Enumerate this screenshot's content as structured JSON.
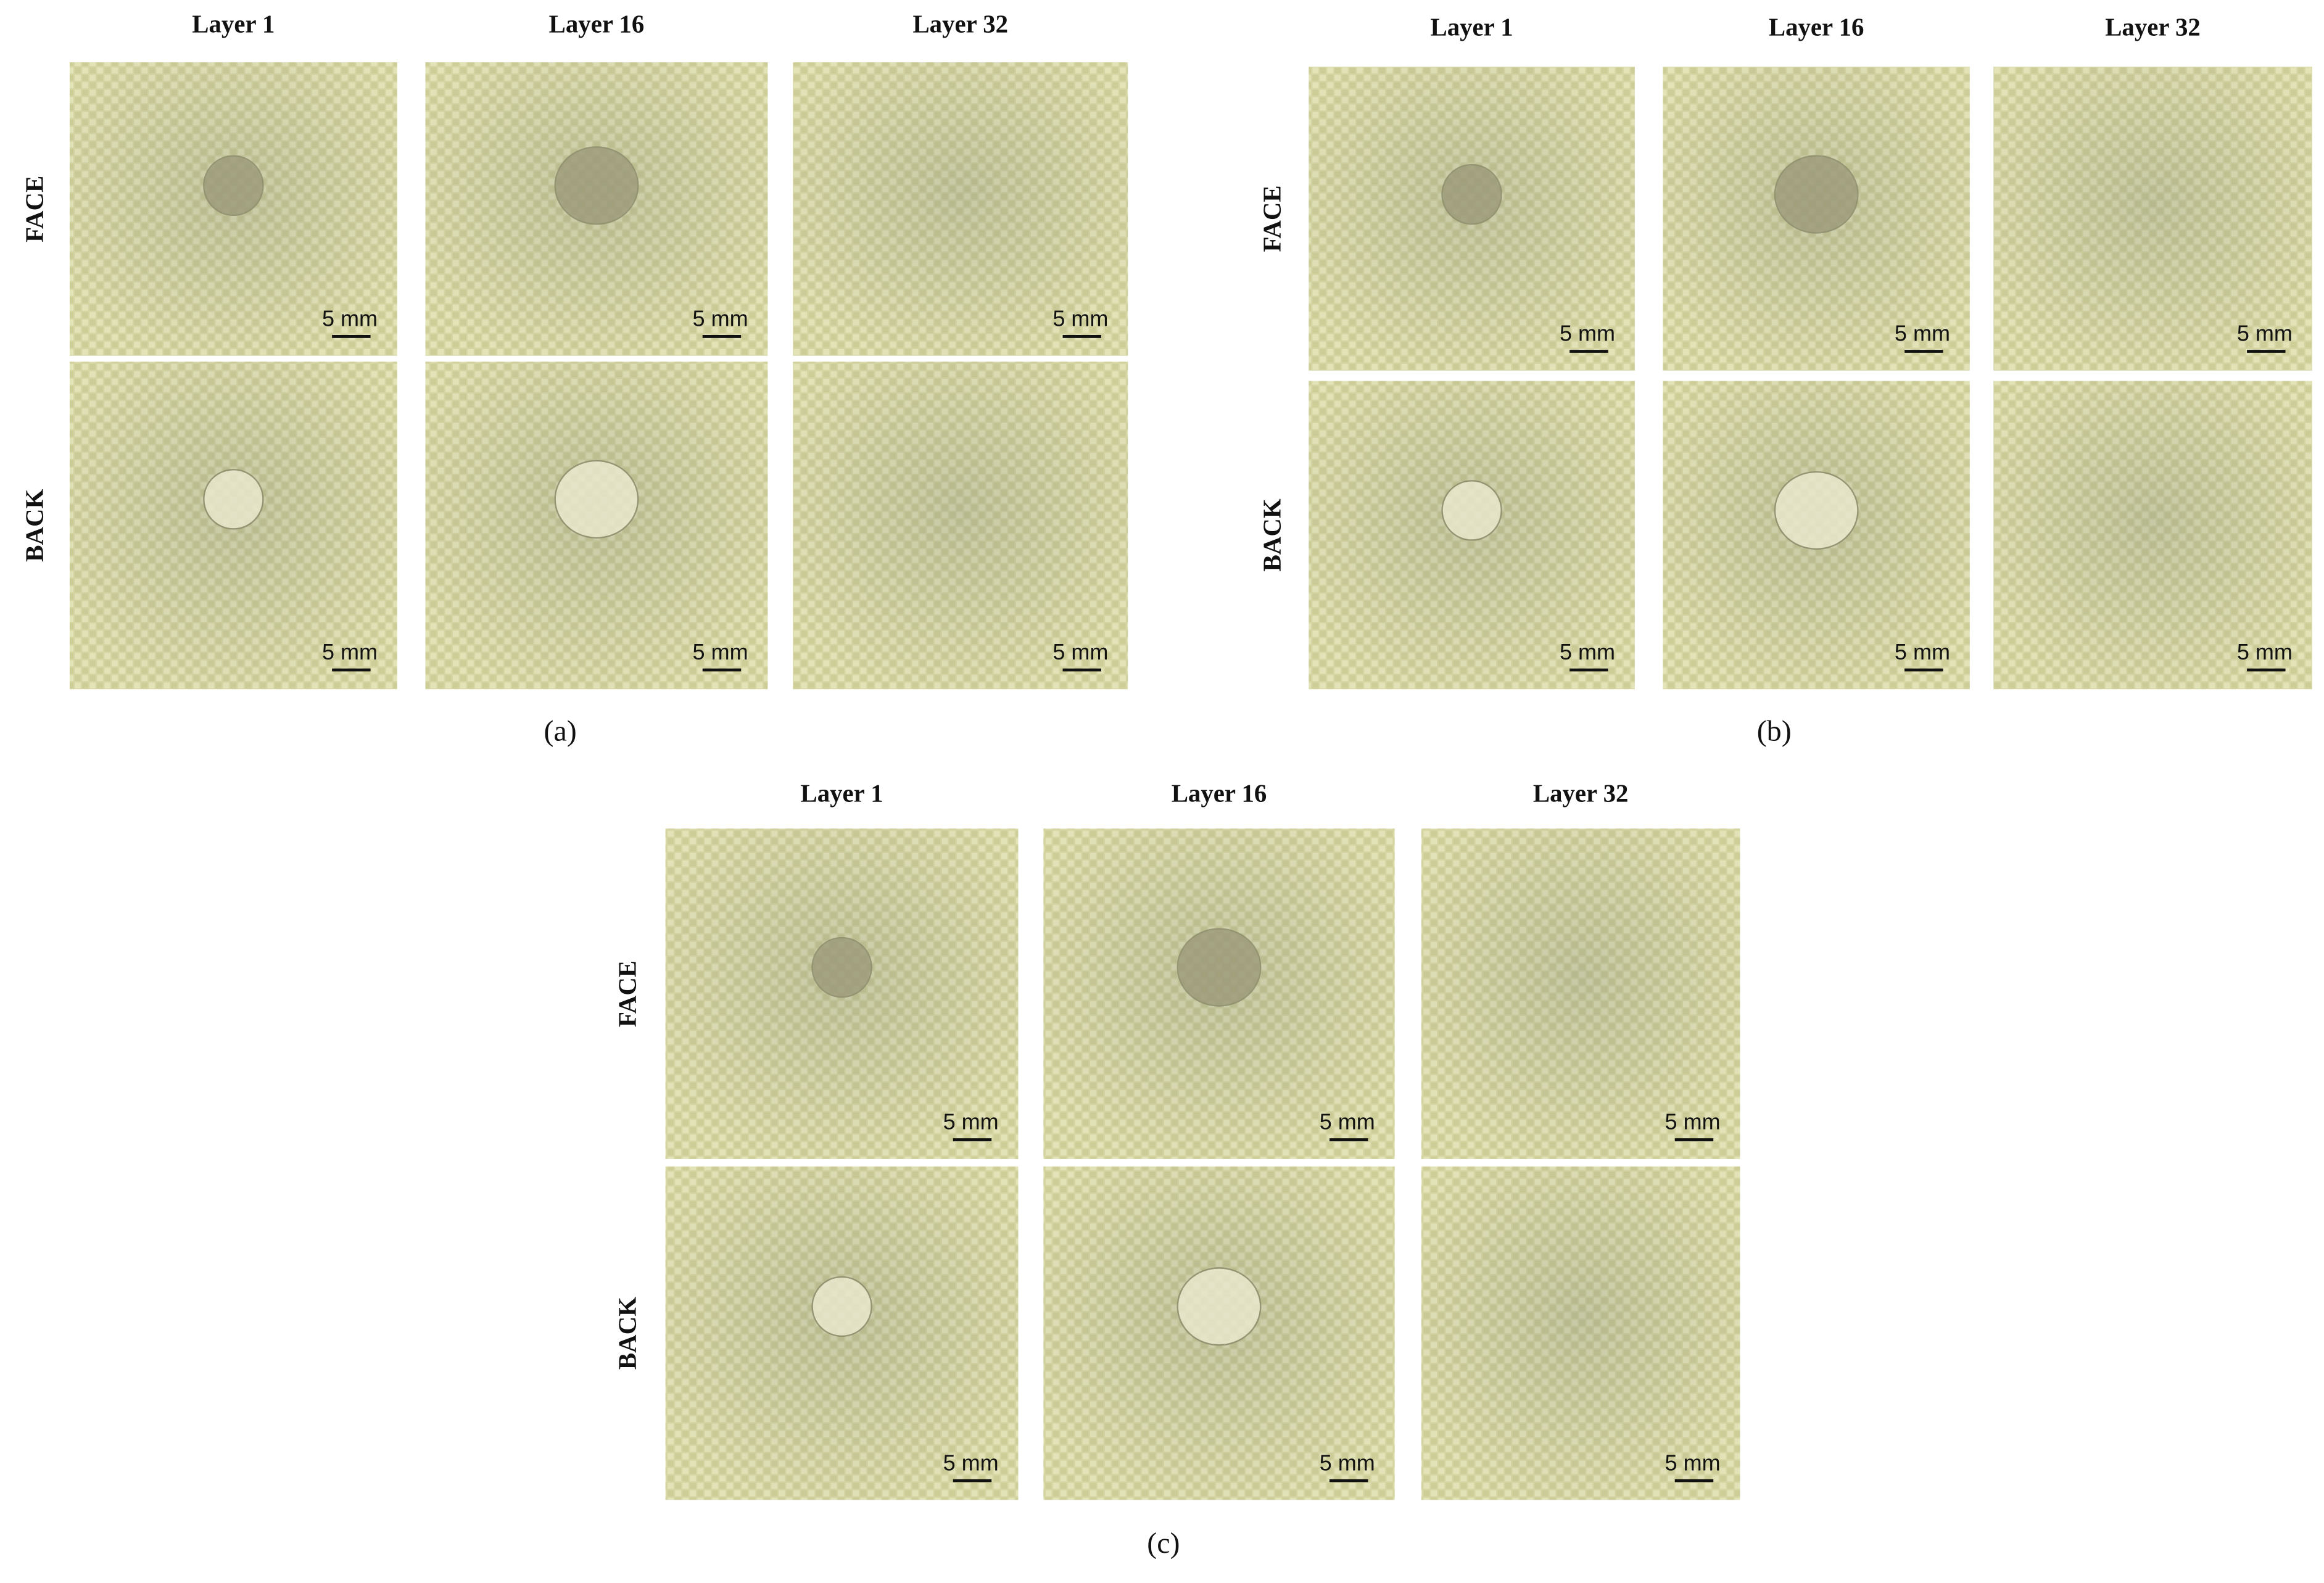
{
  "panels": [
    {
      "caption": "(a)",
      "columns": [
        "Layer 1",
        "Layer 16",
        "Layer 32"
      ],
      "rows": [
        "FACE",
        "BACK"
      ],
      "scale_bars": [
        [
          "5 mm",
          "5 mm",
          "5 mm"
        ],
        [
          "5 mm",
          "5 mm",
          "5 mm"
        ]
      ]
    },
    {
      "caption": "(b)",
      "columns": [
        "Layer 1",
        "Layer 16",
        "Layer 32"
      ],
      "rows": [
        "FACE",
        "BACK"
      ],
      "scale_bars": [
        [
          "5 mm",
          "5 mm",
          "5 mm"
        ],
        [
          "5 mm",
          "5 mm",
          "5 mm"
        ]
      ]
    },
    {
      "caption": "(c)",
      "columns": [
        "Layer 1",
        "Layer 16",
        "Layer 32"
      ],
      "rows": [
        "FACE",
        "BACK"
      ],
      "scale_bars": [
        [
          "5 mm",
          "5 mm",
          "5 mm"
        ],
        [
          "5 mm",
          "5 mm",
          "5 mm"
        ]
      ]
    }
  ]
}
